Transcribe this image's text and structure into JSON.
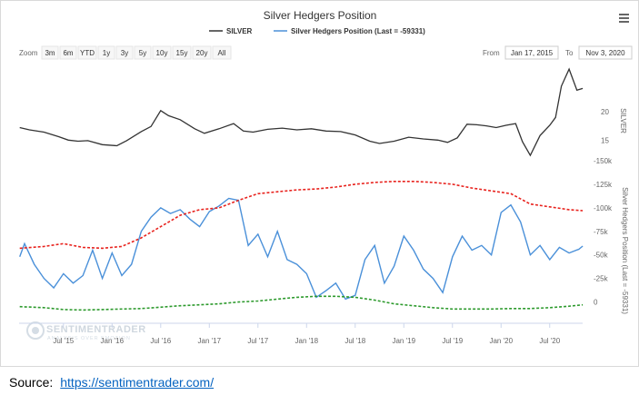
{
  "chart_data": {
    "type": "line",
    "title": "Silver Hedgers Position",
    "legend": [
      {
        "name": "SILVER",
        "color": "#333333"
      },
      {
        "name": "Silver Hedgers Position (Last = -59331)",
        "color": "#4a90d9"
      }
    ],
    "zoom": {
      "label": "Zoom",
      "buttons": [
        "3m",
        "6m",
        "YTD",
        "1y",
        "3y",
        "5y",
        "10y",
        "15y",
        "20y",
        "All"
      ]
    },
    "range": {
      "from_label": "From",
      "from_value": "Jan 17, 2015",
      "to_label": "To",
      "to_value": "Nov 3, 2020"
    },
    "x_ticks": [
      "Jul '15",
      "Jan '16",
      "Jul '16",
      "Jan '17",
      "Jul '17",
      "Jan '18",
      "Jul '18",
      "Jan '19",
      "Jul '19",
      "Jan '20",
      "Jul '20"
    ],
    "x_range": [
      "2015-01-17",
      "2020-11-03"
    ],
    "upper_panel": {
      "ylabel": "SILVER",
      "y_ticks": [
        15,
        20
      ],
      "ylim": [
        12,
        28
      ],
      "series": [
        {
          "name": "SILVER",
          "color": "#333333",
          "t": [
            2015.05,
            2015.15,
            2015.3,
            2015.45,
            2015.55,
            2015.65,
            2015.75,
            2015.9,
            2016.05,
            2016.15,
            2016.3,
            2016.4,
            2016.5,
            2016.58,
            2016.7,
            2016.85,
            2016.95,
            2017.1,
            2017.25,
            2017.35,
            2017.45,
            2017.6,
            2017.75,
            2017.9,
            2018.05,
            2018.2,
            2018.35,
            2018.5,
            2018.65,
            2018.75,
            2018.9,
            2019.05,
            2019.2,
            2019.35,
            2019.45,
            2019.55,
            2019.65,
            2019.75,
            2019.85,
            2019.95,
            2020.05,
            2020.15,
            2020.22,
            2020.3,
            2020.4,
            2020.5,
            2020.56,
            2020.62,
            2020.7,
            2020.78,
            2020.84
          ],
          "values": [
            17.2,
            16.8,
            16.4,
            15.6,
            15.0,
            14.8,
            14.9,
            14.2,
            14.0,
            14.9,
            16.5,
            17.4,
            20.2,
            19.3,
            18.6,
            17.0,
            16.2,
            17.0,
            17.9,
            16.6,
            16.4,
            16.9,
            17.1,
            16.8,
            17.0,
            16.6,
            16.5,
            15.9,
            14.8,
            14.4,
            14.8,
            15.5,
            15.2,
            15.0,
            14.6,
            15.4,
            17.8,
            17.7,
            17.5,
            17.2,
            17.6,
            17.9,
            14.7,
            12.3,
            15.8,
            17.6,
            19.0,
            24.5,
            27.5,
            23.8,
            24.1
          ]
        }
      ]
    },
    "lower_panel": {
      "ylabel": "Silver Hedgers Position (Last = -59331)",
      "y_ticks": [
        0,
        -25000,
        -50000,
        -75000,
        -100000,
        -125000,
        -150000
      ],
      "y_tick_labels": [
        "0",
        "-25k",
        "-50k",
        "-75k",
        "-100k",
        "-125k",
        "-150k"
      ],
      "ylim": [
        12000,
        -150000
      ],
      "series": [
        {
          "name": "Silver Hedgers Position (Last = -59331)",
          "color": "#4a90d9",
          "t": [
            2015.05,
            2015.1,
            2015.2,
            2015.3,
            2015.4,
            2015.5,
            2015.6,
            2015.7,
            2015.8,
            2015.9,
            2016.0,
            2016.1,
            2016.2,
            2016.3,
            2016.4,
            2016.5,
            2016.6,
            2016.7,
            2016.8,
            2016.9,
            2017.0,
            2017.1,
            2017.2,
            2017.3,
            2017.4,
            2017.5,
            2017.6,
            2017.7,
            2017.8,
            2017.9,
            2018.0,
            2018.1,
            2018.2,
            2018.3,
            2018.4,
            2018.5,
            2018.6,
            2018.7,
            2018.8,
            2018.9,
            2019.0,
            2019.1,
            2019.2,
            2019.3,
            2019.4,
            2019.5,
            2019.6,
            2019.7,
            2019.8,
            2019.9,
            2020.0,
            2020.1,
            2020.2,
            2020.3,
            2020.4,
            2020.5,
            2020.6,
            2020.7,
            2020.8,
            2020.84
          ],
          "values": [
            -48000,
            -62000,
            -40000,
            -25000,
            -15000,
            -30000,
            -20000,
            -28000,
            -55000,
            -25000,
            -52000,
            -28000,
            -40000,
            -75000,
            -90000,
            -100000,
            -94000,
            -98000,
            -88000,
            -80000,
            -96000,
            -102000,
            -110000,
            -108000,
            -60000,
            -72000,
            -48000,
            -75000,
            -45000,
            -40000,
            -30000,
            -5000,
            -12000,
            -20000,
            -3000,
            -7000,
            -45000,
            -60000,
            -20000,
            -38000,
            -70000,
            -55000,
            -35000,
            -25000,
            -10000,
            -48000,
            -70000,
            -55000,
            -60000,
            -50000,
            -95000,
            -103000,
            -85000,
            -50000,
            -60000,
            -45000,
            -58000,
            -52000,
            -56000,
            -59331
          ]
        },
        {
          "name": "Upper band",
          "color": "#e8231e",
          "t": [
            2015.05,
            2015.3,
            2015.5,
            2015.7,
            2015.9,
            2016.1,
            2016.3,
            2016.5,
            2016.7,
            2016.9,
            2017.1,
            2017.3,
            2017.5,
            2017.7,
            2017.9,
            2018.1,
            2018.3,
            2018.5,
            2018.7,
            2018.9,
            2019.1,
            2019.3,
            2019.5,
            2019.7,
            2019.9,
            2020.1,
            2020.3,
            2020.5,
            2020.7,
            2020.84
          ],
          "values": [
            -57000,
            -59000,
            -62000,
            -58000,
            -57000,
            -59000,
            -68000,
            -80000,
            -92000,
            -98000,
            -100000,
            -108000,
            -115000,
            -117000,
            -119000,
            -120000,
            -122000,
            -125000,
            -127000,
            -128000,
            -128000,
            -127000,
            -125000,
            -121000,
            -118000,
            -115000,
            -104000,
            -101000,
            -98000,
            -97000
          ]
        },
        {
          "name": "Lower band",
          "color": "#2d9a2d",
          "t": [
            2015.05,
            2015.3,
            2015.5,
            2015.7,
            2015.9,
            2016.1,
            2016.3,
            2016.5,
            2016.7,
            2016.9,
            2017.1,
            2017.3,
            2017.5,
            2017.7,
            2017.9,
            2018.1,
            2018.3,
            2018.5,
            2018.7,
            2018.9,
            2019.1,
            2019.3,
            2019.5,
            2019.7,
            2019.9,
            2020.1,
            2020.3,
            2020.5,
            2020.7,
            2020.84
          ],
          "values": [
            5000,
            6000,
            8000,
            8500,
            8000,
            7500,
            7000,
            5500,
            4000,
            3000,
            2000,
            0,
            -1000,
            -3000,
            -5000,
            -6000,
            -6000,
            -5000,
            -2000,
            2000,
            4000,
            6000,
            7500,
            7500,
            7500,
            7000,
            7000,
            6000,
            4500,
            3000
          ]
        }
      ]
    },
    "watermark": {
      "main": "SENTIMENTRADER",
      "sub": "ANALYSIS OVER EMOTION"
    }
  },
  "source": {
    "label": "Source:",
    "link": "https://sentimentrader.com/"
  },
  "menu_icon": "hamburger-menu-icon",
  "colors": {
    "link": "#0563c1",
    "silver": "#333333",
    "hedgers": "#4a90d9",
    "upper_band": "#e8231e",
    "lower_band": "#2d9a2d"
  }
}
